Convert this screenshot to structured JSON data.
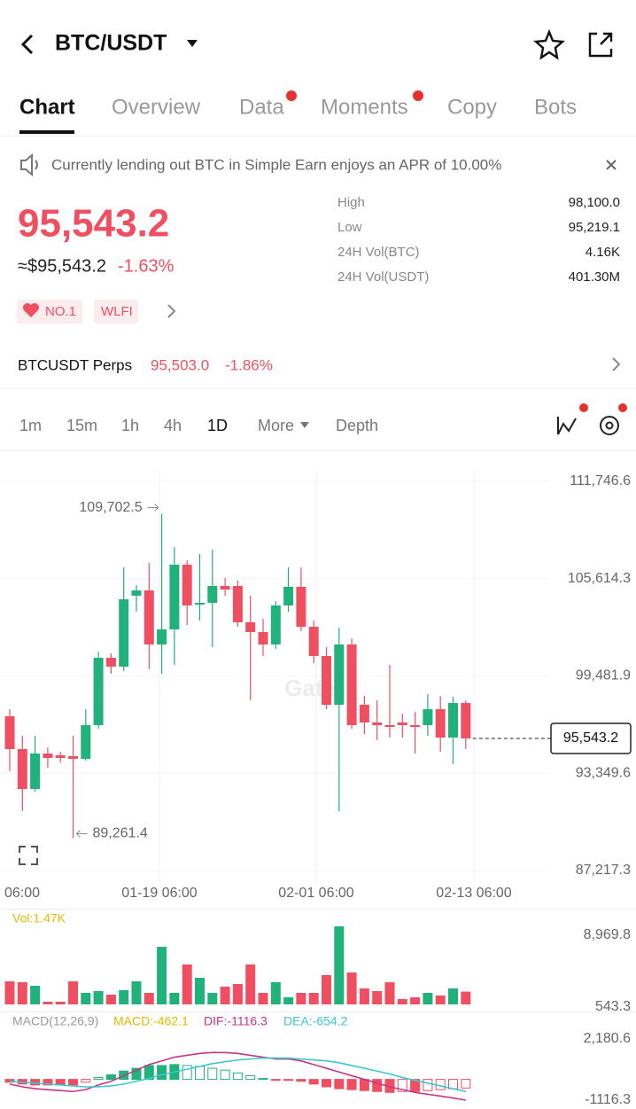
{
  "header": {
    "title": "BTC/USDT"
  },
  "tabs": [
    "Chart",
    "Overview",
    "Data",
    "Moments",
    "Copy",
    "Bots"
  ],
  "banner": "Currently lending out BTC in Simple Earn enjoys an APR of 10.00%",
  "ticker": {
    "price": "95,543.2",
    "approx": "≈$95,543.2",
    "change": "-1.63%",
    "stats": [
      {
        "label": "High",
        "value": "98,100.0"
      },
      {
        "label": "Low",
        "value": "95,219.1"
      },
      {
        "label": "24H Vol(BTC)",
        "value": "4.16K"
      },
      {
        "label": "24H Vol(USDT)",
        "value": "401.30M"
      }
    ],
    "tags": [
      "NO.1",
      "WLFI"
    ]
  },
  "perps": {
    "name": "BTCUSDT Perps",
    "price": "95,503.0",
    "change": "-1.86%"
  },
  "intervals": [
    "1m",
    "15m",
    "1h",
    "4h",
    "1D",
    "More",
    "Depth"
  ],
  "chart_data": {
    "type": "candlestick",
    "watermark": "Gate",
    "up_color": "#20b27a",
    "down_color": "#ef4f60",
    "open": [
      96940,
      94872,
      92358,
      94593,
      94481,
      94425,
      94258,
      96381,
      100628,
      100069,
      104539,
      104874,
      101466,
      102416,
      106495,
      103980,
      104092,
      105154,
      105154,
      102863,
      102248,
      101466,
      103924,
      105098,
      102583,
      100739,
      97666,
      101466,
      97666,
      96549,
      96381,
      96549,
      96381,
      96381,
      97387,
      95599,
      97778
    ],
    "high": [
      97387,
      95710,
      95710,
      94984,
      94705,
      95710,
      97387,
      101018,
      100907,
      106327,
      105210,
      106606,
      109702.5,
      107612,
      106774,
      107165,
      107445,
      105657,
      105489,
      104539,
      103086,
      104204,
      106327,
      106327,
      102974,
      101298,
      102527,
      101857,
      98225,
      97946,
      100181,
      97107,
      97219,
      98337,
      98225,
      98169,
      97946
    ],
    "low": [
      93476,
      90961,
      92190,
      93699,
      94034,
      89261.4,
      94146,
      96158,
      99622,
      99790,
      103533,
      99901,
      99622,
      100181,
      102695,
      102974,
      101298,
      104539,
      102583,
      97946,
      100739,
      101186,
      103533,
      102304,
      100292,
      97387,
      90961,
      96158,
      95822,
      95431,
      95599,
      95599,
      94593,
      95710,
      94705,
      93923,
      94872
    ],
    "close": [
      94872,
      92358,
      94593,
      94313,
      94313,
      94258,
      96381,
      100628,
      100069,
      104315,
      104874,
      101466,
      102416,
      106495,
      103924,
      104092,
      105154,
      104930,
      102863,
      102248,
      101466,
      103924,
      105098,
      102583,
      100739,
      97666,
      101466,
      96381,
      96549,
      96381,
      96269,
      96381,
      96269,
      97387,
      95599,
      97778,
      95543.2
    ],
    "ylim": [
      87217.3,
      111746.6
    ],
    "yticks": [
      {
        "value": 111746.6,
        "label": "111,746.6"
      },
      {
        "value": 105614.3,
        "label": "105,614.3"
      },
      {
        "value": 99481.9,
        "label": "99,481.9"
      },
      {
        "value": 93349.6,
        "label": "93,349.6"
      },
      {
        "value": 87217.3,
        "label": "87,217.3"
      }
    ],
    "x_labels": [
      "06:00",
      "01-19 06:00",
      "02-01 06:00",
      "02-13 06:00"
    ],
    "high_label": "109,702.5",
    "low_label": "89,261.4",
    "last_label": "95,543.2",
    "volume": {
      "label": "Vol:1.47K",
      "color": "#e6b800",
      "values": [
        2650,
        2548,
        2141,
        306,
        306,
        2650,
        1325,
        1529,
        1121,
        1631,
        2650,
        1325,
        6625,
        1325,
        4587,
        3058,
        1325,
        2039,
        2344,
        4587,
        1325,
        2548,
        815,
        1325,
        1325,
        3364,
        8970,
        3669,
        1835,
        1529,
        2548,
        612,
        815,
        1325,
        1019,
        1835,
        1470
      ],
      "ylim": [
        0,
        8969.8
      ],
      "yticks": [
        {
          "value": 8969.8,
          "label": "8,969.8"
        },
        543.3
      ]
    },
    "macd": {
      "title": "MACD(12,26,9)",
      "macd_label": "MACD:-462.1",
      "dif_label": "DIF:-1116.3",
      "dea_label": "DEA:-654.2",
      "macd_color": "#e6b800",
      "dif_color": "#c9348a",
      "dea_color": "#3cc8d0",
      "hist": [
        -150,
        -250,
        -300,
        -300,
        -300,
        -300,
        -150,
        100,
        250,
        450,
        600,
        750,
        750,
        800,
        750,
        700,
        600,
        500,
        350,
        200,
        50,
        -50,
        -50,
        -100,
        -250,
        -400,
        -500,
        -550,
        -600,
        -650,
        -700,
        -650,
        -650,
        -600,
        -550,
        -500,
        -462.1
      ],
      "dif": [
        -250,
        -400,
        -500,
        -550,
        -600,
        -650,
        -550,
        -300,
        -100,
        200,
        500,
        800,
        1000,
        1200,
        1300,
        1400,
        1450,
        1450,
        1400,
        1300,
        1200,
        1100,
        1100,
        1000,
        800,
        600,
        400,
        200,
        0,
        -200,
        -400,
        -550,
        -700,
        -800,
        -900,
        -1000,
        -1116.3
      ],
      "dea": [
        -100,
        -150,
        -200,
        -250,
        -300,
        -350,
        -400,
        -400,
        -350,
        -250,
        -100,
        50,
        250,
        400,
        550,
        700,
        850,
        950,
        1050,
        1100,
        1150,
        1150,
        1150,
        1100,
        1050,
        1000,
        900,
        750,
        600,
        450,
        300,
        100,
        -50,
        -200,
        -350,
        -500,
        -654.2
      ],
      "ylim": [
        -1116.3,
        2180.6
      ],
      "yticks": [
        {
          "value": 2180.6,
          "label": "2,180.6"
        },
        -1116.3
      ]
    }
  }
}
